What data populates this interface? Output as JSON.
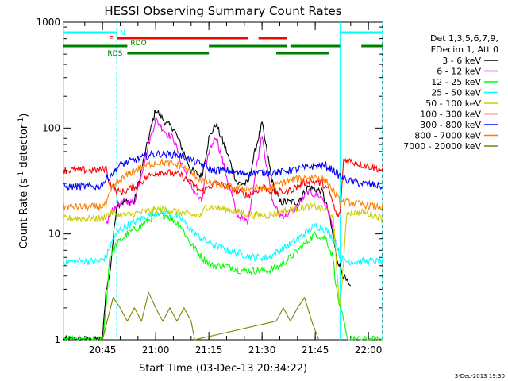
{
  "chart_data": {
    "type": "line",
    "title": "HESSI Observing Summary Count Rates",
    "xlabel": "Start Time (03-Dec-13 20:34:22)",
    "ylabel_main": "Count Rate (s",
    "ylabel_sup1": "-1",
    "ylabel_mid": " detector",
    "ylabel_sup2": "-1",
    "ylabel_end": ")",
    "yscale": "log",
    "ylim": [
      1,
      1000
    ],
    "xlim_minutes": [
      0,
      90
    ],
    "xticks": [
      {
        "min": 11,
        "label": "20:45"
      },
      {
        "min": 26,
        "label": "21:00"
      },
      {
        "min": 41,
        "label": "21:15"
      },
      {
        "min": 56,
        "label": "21:30"
      },
      {
        "min": 71,
        "label": "21:45"
      },
      {
        "min": 86,
        "label": "22:00"
      }
    ],
    "yticks": [
      {
        "v": 1,
        "label": "1"
      },
      {
        "v": 10,
        "label": "10"
      },
      {
        "v": 100,
        "label": "100"
      },
      {
        "v": 1000,
        "label": "1000"
      }
    ],
    "legend": {
      "header1": "Det 1,3,5,6,7,9,",
      "header2": "FDecim 1, Att 0",
      "entries": [
        {
          "label": "3 - 6 keV",
          "color": "#000000"
        },
        {
          "label": "6 - 12 keV",
          "color": "#ff00ff"
        },
        {
          "label": "12 - 25 keV",
          "color": "#00ff00"
        },
        {
          "label": "25 - 50 keV",
          "color": "#00ffff"
        },
        {
          "label": "50 - 100 keV",
          "color": "#cccc00"
        },
        {
          "label": "100 - 300 keV",
          "color": "#ff0000"
        },
        {
          "label": "300 - 800 keV",
          "color": "#0000ff"
        },
        {
          "label": "800 - 7000 keV",
          "color": "#ff8000"
        },
        {
          "label": "7000 - 20000 keV",
          "color": "#808000"
        }
      ]
    },
    "series": [
      {
        "color": "#000000",
        "x": [
          0,
          8,
          11,
          12,
          13,
          15,
          17,
          20,
          24,
          26,
          29,
          31,
          33,
          36,
          39,
          41,
          43,
          46,
          49,
          52,
          54,
          56,
          57,
          59,
          61,
          63,
          66,
          69,
          73,
          75,
          77,
          78,
          79,
          81
        ],
        "y": [
          1.0,
          1.0,
          1.0,
          3,
          4,
          19,
          20,
          20,
          80,
          150,
          110,
          100,
          70,
          40,
          35,
          80,
          110,
          60,
          30,
          30,
          60,
          110,
          70,
          30,
          20,
          20,
          20,
          28,
          25,
          15,
          6,
          5,
          4,
          3
        ]
      },
      {
        "color": "#ff00ff",
        "x": [
          12,
          13,
          15,
          17,
          20,
          24,
          26,
          29,
          31,
          33,
          36,
          39,
          41,
          43,
          46,
          49,
          52,
          54,
          56,
          57,
          59,
          61,
          63,
          66,
          69,
          73,
          75,
          77
        ],
        "y": [
          12,
          15,
          19,
          20,
          20,
          70,
          120,
          90,
          80,
          50,
          28,
          20,
          60,
          85,
          35,
          15,
          13,
          35,
          90,
          50,
          20,
          15,
          15,
          18,
          25,
          22,
          15,
          8
        ]
      },
      {
        "color": "#00ff00",
        "x": [
          0,
          11,
          12,
          13,
          15,
          18,
          22,
          26,
          29,
          33,
          36,
          39,
          42,
          46,
          50,
          54,
          58,
          61,
          64,
          68,
          71,
          74,
          76,
          77,
          78,
          79,
          80,
          90
        ],
        "y": [
          1.0,
          1.0,
          2,
          6,
          8,
          10,
          12,
          15,
          15,
          12,
          8,
          6,
          5,
          5,
          4.5,
          4.5,
          4.5,
          5,
          6,
          8,
          10,
          9,
          6,
          3,
          2,
          1.5,
          1.0,
          1.0
        ]
      },
      {
        "color": "#00ffff",
        "x": [
          0,
          10,
          12,
          14,
          16,
          18,
          22,
          26,
          29,
          33,
          36,
          39,
          42,
          46,
          50,
          54,
          58,
          61,
          64,
          68,
          71,
          74,
          76,
          77,
          78,
          80,
          84,
          88,
          90
        ],
        "y": [
          5.5,
          5.5,
          6,
          9,
          11,
          12,
          14,
          16,
          16,
          14,
          11,
          9,
          8,
          7,
          6.5,
          6,
          6,
          7,
          8,
          10,
          12,
          11,
          9,
          8,
          6,
          5.5,
          5.5,
          5.5,
          5.5
        ]
      },
      {
        "color": "#cccc00",
        "x": [
          0,
          11,
          12,
          14,
          16,
          18,
          22,
          26,
          29,
          33,
          36,
          39,
          40,
          42,
          46,
          50,
          54,
          58,
          61,
          64,
          68,
          71,
          74,
          76,
          77,
          78,
          80,
          84,
          88,
          90
        ],
        "y": [
          14,
          14,
          15,
          16,
          15,
          15,
          16,
          17,
          17,
          16,
          15,
          15,
          18,
          18,
          17,
          16,
          15,
          15,
          16,
          17,
          18,
          18,
          17,
          15,
          5,
          2,
          16,
          16,
          15,
          14
        ]
      },
      {
        "color": "#ff0000",
        "x": [
          0,
          10,
          12,
          13,
          15,
          17,
          20,
          24,
          26,
          29,
          33,
          36,
          39,
          41,
          43,
          46,
          49,
          52,
          54,
          56,
          59,
          63,
          66,
          69,
          73,
          75,
          77,
          78,
          79,
          80,
          84,
          88,
          90
        ],
        "y": [
          40,
          40,
          42,
          30,
          25,
          25,
          28,
          35,
          38,
          38,
          36,
          30,
          25,
          28,
          30,
          28,
          25,
          23,
          25,
          28,
          25,
          25,
          28,
          32,
          30,
          25,
          15,
          15,
          50,
          50,
          45,
          42,
          40
        ]
      },
      {
        "color": "#0000ff",
        "x": [
          0,
          10,
          13,
          16,
          20,
          24,
          26,
          29,
          33,
          36,
          39,
          42,
          46,
          50,
          54,
          58,
          61,
          64,
          68,
          71,
          74,
          76,
          78,
          80,
          84,
          88,
          90
        ],
        "y": [
          28,
          28,
          35,
          45,
          50,
          55,
          57,
          57,
          55,
          50,
          45,
          40,
          40,
          37,
          38,
          38,
          38,
          40,
          42,
          44,
          44,
          40,
          35,
          32,
          30,
          29,
          28
        ]
      },
      {
        "color": "#ff8000",
        "x": [
          0,
          10,
          12,
          14,
          16,
          20,
          24,
          26,
          29,
          33,
          36,
          39,
          42,
          46,
          50,
          54,
          58,
          61,
          64,
          68,
          71,
          74,
          76,
          78,
          80,
          84,
          88,
          90
        ],
        "y": [
          18,
          18,
          19,
          28,
          32,
          40,
          45,
          47,
          47,
          44,
          38,
          32,
          30,
          28,
          27,
          27,
          27,
          30,
          32,
          34,
          35,
          32,
          26,
          20,
          20,
          19,
          18,
          18
        ]
      },
      {
        "color": "#808000",
        "x": [
          11,
          14,
          16,
          18,
          20,
          22,
          24,
          26,
          28,
          30,
          32,
          34,
          36,
          37,
          60,
          62,
          64,
          66,
          68,
          70,
          72
        ],
        "y": [
          1,
          2.5,
          2,
          1.5,
          2,
          1.5,
          2.8,
          2,
          1.5,
          2,
          1.5,
          2,
          1.5,
          1,
          1.5,
          2,
          1.5,
          2,
          2.5,
          1.5,
          1
        ]
      }
    ],
    "state_bars": {
      "N_label": "N",
      "N_color": "#00ffff",
      "N_segments": [
        [
          0,
          15
        ],
        [
          78,
          90
        ]
      ],
      "F_label": "F",
      "F_color": "#ff0000",
      "F_segments": [
        [
          15,
          52
        ],
        [
          55,
          63
        ]
      ],
      "RDO_label": "RDO",
      "RDS_label": "RDS",
      "bar_color": "#008000",
      "RDO_segments": [
        [
          0,
          18
        ],
        [
          41,
          63
        ],
        [
          64,
          78
        ],
        [
          84,
          90
        ]
      ],
      "RDS_segments": [
        [
          18,
          41
        ],
        [
          60,
          75
        ]
      ]
    },
    "vlines": [
      {
        "min": 0,
        "color": "#00ffff",
        "style": "solid"
      },
      {
        "min": 15,
        "color": "#00ffff",
        "style": "dashed"
      },
      {
        "min": 78,
        "color": "#00ffff",
        "style": "solid"
      },
      {
        "min": 90,
        "color": "#00ffff",
        "style": "dashed"
      }
    ]
  },
  "footer": {
    "date": "3-Dec-2013 19:30"
  }
}
